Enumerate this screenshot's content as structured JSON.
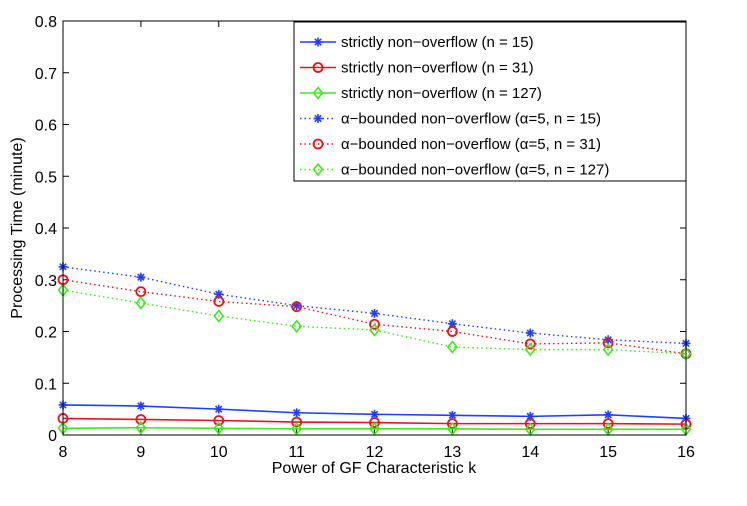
{
  "chart_data": {
    "type": "line",
    "title": "",
    "xlabel": "Power of GF Characteristic k",
    "ylabel": "Processing Time (minute)",
    "xlim": [
      8,
      16
    ],
    "ylim": [
      0,
      0.8
    ],
    "xticks": [
      "8",
      "9",
      "10",
      "11",
      "12",
      "13",
      "14",
      "15",
      "16"
    ],
    "yticks": [
      "0",
      "0.1",
      "0.2",
      "0.3",
      "0.4",
      "0.5",
      "0.6",
      "0.7",
      "0.8"
    ],
    "legend_position": "top-right",
    "series": [
      {
        "name": "strictly non−overflow (n = 15)",
        "color": "#1f3fff",
        "marker": "asterisk",
        "line": "solid",
        "x": [
          8,
          9,
          10,
          11,
          12,
          13,
          14,
          15,
          16
        ],
        "y": [
          0.058,
          0.056,
          0.05,
          0.043,
          0.04,
          0.038,
          0.036,
          0.039,
          0.032
        ]
      },
      {
        "name": "strictly non−overflow (n = 31)",
        "color": "#e8141e",
        "marker": "circle",
        "line": "solid",
        "x": [
          8,
          9,
          10,
          11,
          12,
          13,
          14,
          15,
          16
        ],
        "y": [
          0.032,
          0.03,
          0.028,
          0.025,
          0.024,
          0.022,
          0.022,
          0.022,
          0.021
        ]
      },
      {
        "name": "strictly non−overflow (n = 127)",
        "color": "#3fe81f",
        "marker": "diamond",
        "line": "solid",
        "x": [
          8,
          9,
          10,
          11,
          12,
          13,
          14,
          15,
          16
        ],
        "y": [
          0.013,
          0.014,
          0.013,
          0.012,
          0.012,
          0.012,
          0.011,
          0.011,
          0.011
        ]
      },
      {
        "name": "α−bounded non−overflow (α=5, n = 15)",
        "color": "#1f3fff",
        "marker": "asterisk",
        "line": "dotted",
        "x": [
          8,
          9,
          10,
          11,
          12,
          13,
          14,
          15,
          16
        ],
        "y": [
          0.325,
          0.305,
          0.272,
          0.25,
          0.235,
          0.215,
          0.197,
          0.184,
          0.177
        ]
      },
      {
        "name": "α−bounded non−overflow (α=5, n = 31)",
        "color": "#e8141e",
        "marker": "circle",
        "line": "dotted",
        "x": [
          8,
          9,
          10,
          11,
          12,
          13,
          14,
          15,
          16
        ],
        "y": [
          0.3,
          0.277,
          0.258,
          0.248,
          0.214,
          0.2,
          0.176,
          0.178,
          0.157
        ]
      },
      {
        "name": "α−bounded non−overflow (α=5, n = 127)",
        "color": "#3fe81f",
        "marker": "diamond",
        "line": "dotted",
        "x": [
          8,
          9,
          10,
          11,
          12,
          13,
          14,
          15,
          16
        ],
        "y": [
          0.28,
          0.255,
          0.23,
          0.21,
          0.203,
          0.17,
          0.165,
          0.165,
          0.157
        ]
      }
    ]
  }
}
